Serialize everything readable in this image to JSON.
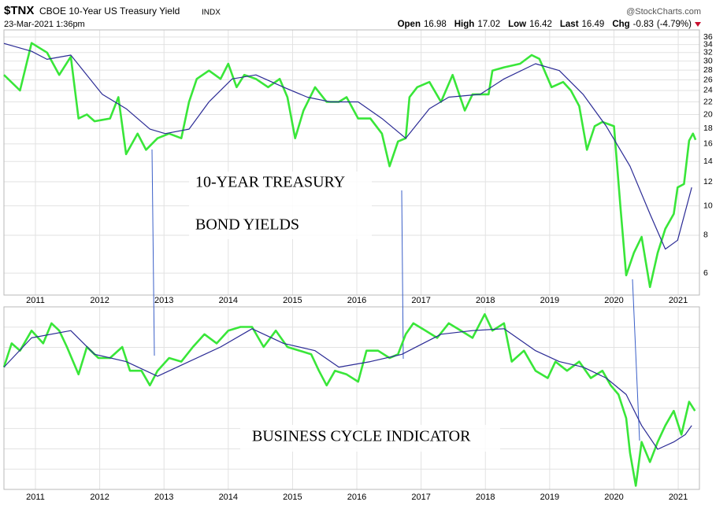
{
  "header": {
    "symbol": "$TNX",
    "name": "CBOE 10-Year US Treasury Yield",
    "exchange": "INDX",
    "source": "@StockCharts.com",
    "timestamp": "23-Mar-2021 1:36pm",
    "quote": [
      {
        "label": "Open",
        "value": 16.98
      },
      {
        "label": "High",
        "value": 17.02
      },
      {
        "label": "Low",
        "value": 16.42
      },
      {
        "label": "Last",
        "value": 16.49
      },
      {
        "label": "Chg",
        "value": -0.83,
        "pct": "(-4.79%)"
      }
    ]
  },
  "chart_data": [
    {
      "type": "line",
      "annotation": [
        "10-YEAR TREASURY",
        "BOND YIELDS"
      ],
      "log_scale": true,
      "grid": true,
      "xlim": [
        2010.51,
        2021.33
      ],
      "xticks": [
        2011,
        2012,
        2013,
        2014,
        2015,
        2016,
        2017,
        2018,
        2019,
        2020,
        2021
      ],
      "ylim": [
        5.08,
        38
      ],
      "yticks": [
        6,
        8,
        10,
        12,
        14,
        16,
        18,
        20,
        22,
        24,
        26,
        28,
        30,
        32,
        34,
        36
      ],
      "series": [
        {
          "color": "#39e639",
          "x": [
            2010.51,
            2010.76,
            2010.94,
            2011.18,
            2011.37,
            2011.55,
            2011.67,
            2011.8,
            2011.92,
            2012.16,
            2012.29,
            2012.41,
            2012.59,
            2012.72,
            2012.9,
            2013.08,
            2013.27,
            2013.39,
            2013.51,
            2013.7,
            2013.88,
            2014.0,
            2014.13,
            2014.25,
            2014.43,
            2014.62,
            2014.8,
            2014.92,
            2015.04,
            2015.17,
            2015.35,
            2015.53,
            2015.72,
            2015.84,
            2016.02,
            2016.21,
            2016.39,
            2016.51,
            2016.64,
            2016.76,
            2016.82,
            2016.94,
            2017.13,
            2017.31,
            2017.49,
            2017.68,
            2017.8,
            2018.05,
            2018.11,
            2018.29,
            2018.54,
            2018.72,
            2018.84,
            2019.03,
            2019.21,
            2019.33,
            2019.46,
            2019.58,
            2019.7,
            2019.82,
            2020.0,
            2020.1,
            2020.19,
            2020.31,
            2020.43,
            2020.56,
            2020.68,
            2020.8,
            2020.93,
            2020.99,
            2021.09,
            2021.17,
            2021.23,
            2021.27
          ],
          "values": [
            27,
            24,
            34.4,
            32,
            27,
            31,
            19.4,
            20,
            19,
            19.4,
            22.8,
            14.8,
            17.3,
            15.3,
            16.7,
            17.3,
            16.7,
            22,
            26.2,
            27.9,
            26.2,
            29.4,
            24.6,
            27,
            26.2,
            24.6,
            26.2,
            22.8,
            16.7,
            20.6,
            24.6,
            22,
            22,
            22.8,
            19.4,
            19.4,
            17.3,
            13.5,
            16.3,
            16.7,
            22.8,
            24.6,
            25.6,
            22,
            27,
            20.6,
            23.3,
            23.3,
            27.9,
            28.6,
            29.4,
            31.4,
            30.5,
            24.6,
            25.6,
            24,
            21.3,
            15.3,
            18.3,
            18.9,
            18.3,
            10,
            5.9,
            7,
            7.9,
            5.4,
            7,
            8.4,
            9.4,
            11.5,
            11.8,
            16.4,
            17.3,
            16.5
          ]
        },
        {
          "color": "#2b2b95",
          "x": [
            2010.51,
            2010.94,
            2011.18,
            2011.55,
            2012.04,
            2012.41,
            2012.78,
            2013.02,
            2013.39,
            2013.7,
            2014.06,
            2014.43,
            2014.86,
            2015.23,
            2015.59,
            2016.02,
            2016.39,
            2016.76,
            2017.13,
            2017.43,
            2017.92,
            2018.29,
            2018.78,
            2019.15,
            2019.52,
            2019.88,
            2020.25,
            2020.56,
            2020.8,
            2020.99,
            2021.21
          ],
          "values": [
            34.3,
            32.3,
            30.4,
            31.4,
            23.3,
            20.9,
            17.9,
            17.3,
            17.9,
            22,
            26.2,
            27,
            24.6,
            22.8,
            22,
            22,
            19.4,
            16.7,
            20.9,
            22.8,
            23.3,
            26.2,
            29.4,
            27.9,
            23.3,
            18.3,
            13.5,
            9.4,
            7.2,
            7.7,
            11.5
          ]
        }
      ]
    },
    {
      "type": "line",
      "annotation": "BUSINESS CYCLE INDICATOR",
      "xlim": [
        2010.51,
        2021.33
      ],
      "xticks": [
        2011,
        2012,
        2013,
        2014,
        2015,
        2016,
        2017,
        2018,
        2019,
        2020,
        2021
      ],
      "ylim": [
        0,
        100
      ],
      "series": [
        {
          "color": "#39e639",
          "x": [
            2010.51,
            2010.63,
            2010.76,
            2010.94,
            2011.12,
            2011.25,
            2011.37,
            2011.49,
            2011.67,
            2011.8,
            2011.98,
            2012.16,
            2012.35,
            2012.47,
            2012.65,
            2012.78,
            2012.9,
            2013.08,
            2013.27,
            2013.45,
            2013.63,
            2013.82,
            2014.0,
            2014.19,
            2014.37,
            2014.55,
            2014.74,
            2014.92,
            2015.11,
            2015.29,
            2015.41,
            2015.53,
            2015.66,
            2015.84,
            2016.02,
            2016.15,
            2016.33,
            2016.51,
            2016.64,
            2016.76,
            2016.88,
            2017.07,
            2017.25,
            2017.43,
            2017.62,
            2017.8,
            2017.99,
            2018.11,
            2018.29,
            2018.41,
            2018.6,
            2018.78,
            2018.97,
            2019.09,
            2019.27,
            2019.46,
            2019.64,
            2019.82,
            2019.95,
            2020.07,
            2020.19,
            2020.25,
            2020.34,
            2020.43,
            2020.56,
            2020.68,
            2020.8,
            2020.93,
            2021.05,
            2021.17,
            2021.26
          ],
          "values": [
            67,
            80,
            76,
            87,
            80,
            91,
            87,
            78,
            63,
            78,
            72,
            72,
            78,
            65,
            65,
            57,
            65,
            72,
            70,
            78,
            85,
            80,
            87,
            89,
            89,
            78,
            87,
            78,
            76,
            74,
            65,
            57,
            65,
            63,
            59,
            76,
            76,
            72,
            74,
            85,
            91,
            87,
            83,
            91,
            87,
            83,
            96,
            87,
            91,
            70,
            76,
            65,
            61,
            70,
            65,
            70,
            61,
            65,
            57,
            52,
            39,
            20,
            2,
            26,
            15,
            26,
            35,
            43,
            30,
            48,
            43
          ]
        },
        {
          "color": "#2b2b95",
          "x": [
            2010.51,
            2010.94,
            2011.55,
            2011.92,
            2012.41,
            2012.9,
            2013.39,
            2013.88,
            2014.37,
            2014.86,
            2015.35,
            2015.72,
            2016.21,
            2016.7,
            2017.31,
            2017.8,
            2018.29,
            2018.78,
            2019.15,
            2019.52,
            2019.88,
            2020.19,
            2020.43,
            2020.68,
            2020.93,
            2021.11,
            2021.21
          ],
          "values": [
            67,
            83,
            87,
            74,
            70,
            62,
            70,
            78,
            88,
            80,
            76,
            67,
            70,
            74,
            85,
            87,
            88,
            76,
            70,
            67,
            61,
            52,
            35,
            22,
            26,
            30,
            35
          ]
        }
      ]
    }
  ]
}
